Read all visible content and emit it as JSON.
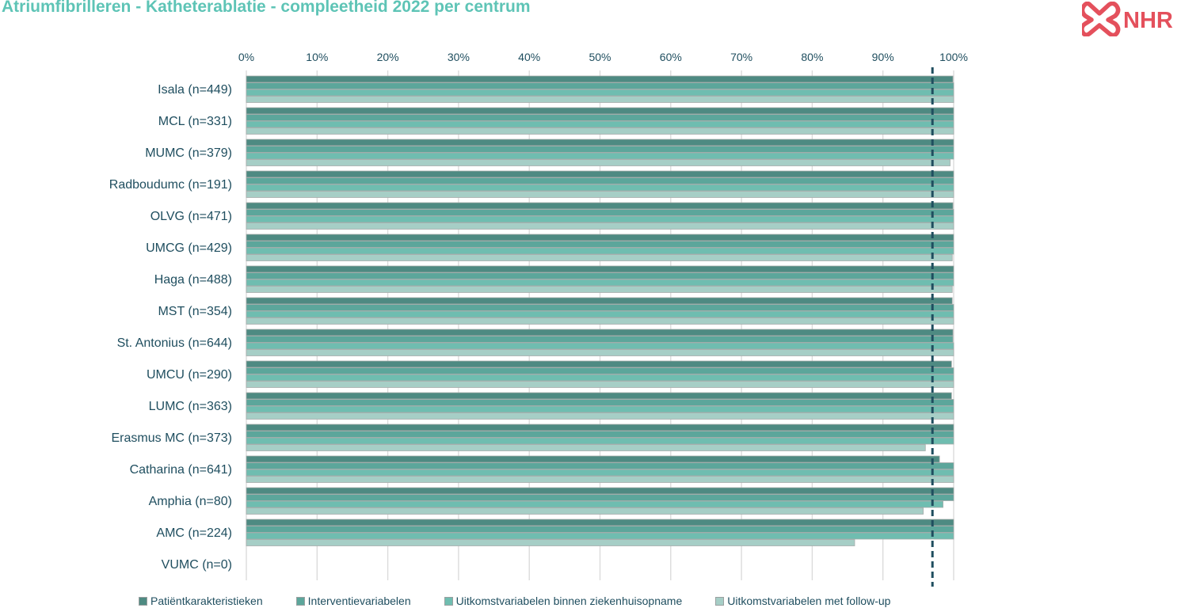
{
  "title": "Atriumfibrilleren - Katheterablatie - compleetheid 2022 per centrum",
  "logo": {
    "text": "NHR",
    "icon": "nhr-heart-logo-icon",
    "color": "#e4505c"
  },
  "colors": {
    "title": "#5ec4b6",
    "axis_text": "#1f4e5f",
    "gridline": "#d9d9d9",
    "reference_line": "#1f4e5f",
    "series": [
      "#4e8a82",
      "#5ca69b",
      "#6fbdb0",
      "#a6cec6"
    ]
  },
  "chart_data": {
    "type": "bar",
    "orientation": "horizontal",
    "categories": [
      "Isala (n=449)",
      "MCL (n=331)",
      "MUMC (n=379)",
      "Radboudumc (n=191)",
      "OLVG (n=471)",
      "UMCG (n=429)",
      "Haga (n=488)",
      "MST (n=354)",
      "St. Antonius (n=644)",
      "UMCU (n=290)",
      "LUMC (n=363)",
      "Erasmus MC (n=373)",
      "Catharina (n=641)",
      "Amphia (n=80)",
      "AMC (n=224)",
      "VUMC (n=0)"
    ],
    "series": [
      {
        "name": "Patiëntkarakteristieken",
        "values": [
          99.9,
          100,
          100,
          100,
          99.9,
          100,
          100,
          99.8,
          99.9,
          99.7,
          99.7,
          100,
          98.0,
          100,
          100,
          0
        ]
      },
      {
        "name": "Interventievariabelen",
        "values": [
          100,
          100,
          100,
          100,
          100,
          100,
          100,
          100,
          99.9,
          100,
          100,
          100,
          100,
          100,
          100,
          0
        ]
      },
      {
        "name": "Uitkomstvariabelen binnen ziekenhuisopname",
        "values": [
          100,
          100,
          100,
          100,
          100,
          100,
          100,
          100,
          100,
          100,
          100,
          100,
          100,
          98.5,
          100,
          0
        ]
      },
      {
        "name": "Uitkomstvariabelen met follow-up",
        "values": [
          100,
          100,
          99.5,
          100,
          100,
          99.8,
          99.8,
          100,
          100,
          100,
          100,
          96.0,
          100,
          95.7,
          86.0,
          0
        ]
      }
    ],
    "x_ticks": [
      "0%",
      "10%",
      "20%",
      "30%",
      "40%",
      "50%",
      "60%",
      "70%",
      "80%",
      "90%",
      "100%"
    ],
    "xlim": [
      0,
      100
    ],
    "x_axis_position": "top",
    "reference_line": {
      "value": 97,
      "style": "dashed"
    },
    "grid": true,
    "legend_position": "bottom"
  }
}
